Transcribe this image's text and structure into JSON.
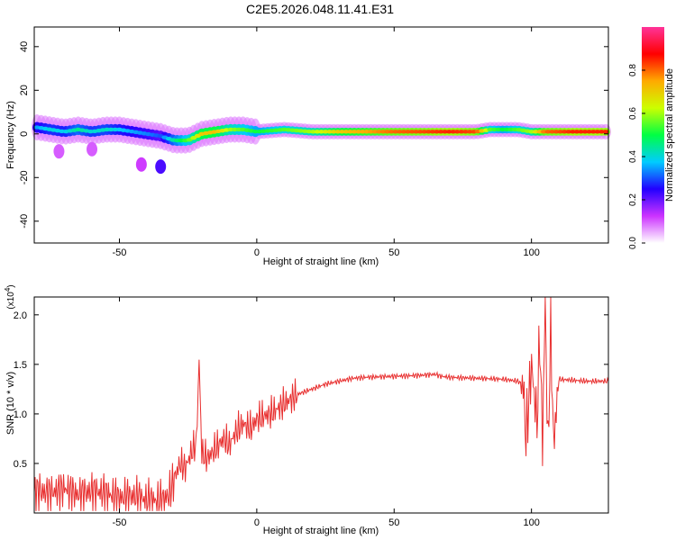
{
  "figure_title": "C2E5.2026.048.11.41.E31",
  "chart_data": [
    {
      "type": "heatmap",
      "title": "C2E5.2026.048.11.41.E31",
      "xlabel": "Height of straight line (km)",
      "ylabel": "Frequency (Hz)",
      "xlim": [
        -81,
        128
      ],
      "ylim": [
        -50,
        49
      ],
      "x_ticks": [
        -50,
        0,
        50,
        100
      ],
      "y_ticks": [
        -40,
        -20,
        0,
        20,
        40
      ],
      "x_tick_labels": [
        "-50",
        "0",
        "50",
        "100"
      ],
      "y_tick_labels": [
        "-40",
        "-20",
        "0",
        "20",
        "40"
      ],
      "colorbar": {
        "label": "Normalized spectral amplitude",
        "range": [
          0,
          1
        ],
        "ticks": [
          0.0,
          0.2,
          0.4,
          0.6,
          0.8
        ],
        "tick_labels": [
          "0.0",
          "0.2",
          "0.4",
          "0.6",
          "0.8"
        ],
        "colors": [
          "#ffffff",
          "#cc33ff",
          "#2200ff",
          "#00ccff",
          "#00ff44",
          "#ccff00",
          "#ffaa00",
          "#ff0000",
          "#ff3399"
        ]
      },
      "ridge": {
        "x": [
          -80,
          -75,
          -70,
          -65,
          -60,
          -55,
          -50,
          -45,
          -40,
          -35,
          -30,
          -25,
          -20,
          -15,
          -10,
          -5,
          0,
          10,
          20,
          30,
          40,
          50,
          60,
          70,
          80,
          85,
          90,
          95,
          100,
          105,
          110,
          115,
          120,
          128
        ],
        "y": [
          3,
          2,
          1,
          2,
          1,
          2,
          2,
          1,
          0,
          -1,
          -3,
          -3,
          0,
          1,
          2,
          2,
          1,
          2,
          1,
          1,
          1,
          1,
          1,
          1,
          1,
          2,
          2,
          2,
          1,
          1,
          1,
          1,
          1,
          1
        ],
        "amplitude": [
          0.35,
          0.4,
          0.38,
          0.45,
          0.4,
          0.42,
          0.38,
          0.35,
          0.33,
          0.3,
          0.45,
          0.55,
          0.7,
          0.72,
          0.6,
          0.55,
          0.5,
          0.55,
          0.6,
          0.7,
          0.75,
          0.8,
          0.82,
          0.85,
          0.82,
          0.55,
          0.5,
          0.55,
          0.6,
          0.8,
          0.82,
          0.85,
          0.85,
          0.85
        ]
      },
      "blobs": [
        {
          "x": -35,
          "y": -15,
          "amplitude": 0.22
        },
        {
          "x": -42,
          "y": -14,
          "amplitude": 0.12
        },
        {
          "x": -60,
          "y": -7,
          "amplitude": 0.1
        },
        {
          "x": -72,
          "y": -8,
          "amplitude": 0.1
        }
      ]
    },
    {
      "type": "line",
      "xlabel": "Height of straight line (km)",
      "ylabel": "SNR (10 * v/v)",
      "y_multiplier": "(x10",
      "y_multiplier_exponent": "4",
      "y_multiplier_close": ")",
      "xlim": [
        -81,
        128
      ],
      "ylim": [
        0.0,
        2.18
      ],
      "x_ticks": [
        -50,
        0,
        50,
        100
      ],
      "y_ticks": [
        0.5,
        1.0,
        1.5,
        2.0
      ],
      "x_tick_labels": [
        "-50",
        "0",
        "50",
        "100"
      ],
      "y_tick_labels": [
        "0.5",
        "1.0",
        "1.5",
        "2.0"
      ],
      "color": "#e83030",
      "series": [
        {
          "x": [
            -81,
            -75,
            -70,
            -65,
            -60,
            -55,
            -50,
            -45,
            -40,
            -35,
            -32,
            -30,
            -28,
            -26,
            -24,
            -22,
            -21,
            -20,
            -18,
            -15,
            -12,
            -10,
            -8,
            -5,
            -2,
            0,
            5,
            10,
            15,
            20,
            25,
            30,
            35,
            40,
            50,
            60,
            65,
            67,
            70,
            80,
            90,
            95,
            97,
            98,
            100,
            101,
            102,
            103,
            104,
            105,
            106,
            107,
            108,
            110,
            115,
            120,
            128
          ],
          "y": [
            0.22,
            0.2,
            0.25,
            0.18,
            0.22,
            0.2,
            0.15,
            0.17,
            0.13,
            0.12,
            0.18,
            0.35,
            0.5,
            0.45,
            0.6,
            0.7,
            1.55,
            0.6,
            0.55,
            0.65,
            0.75,
            0.68,
            0.8,
            0.9,
            0.85,
            0.95,
            1.0,
            1.1,
            1.2,
            1.25,
            1.3,
            1.33,
            1.36,
            1.37,
            1.38,
            1.39,
            1.4,
            1.38,
            1.37,
            1.36,
            1.35,
            1.33,
            1.3,
            0.75,
            1.5,
            1.2,
            0.9,
            1.8,
            0.7,
            2.15,
            0.6,
            1.95,
            0.7,
            1.35,
            1.34,
            1.33,
            1.33
          ]
        }
      ]
    }
  ]
}
